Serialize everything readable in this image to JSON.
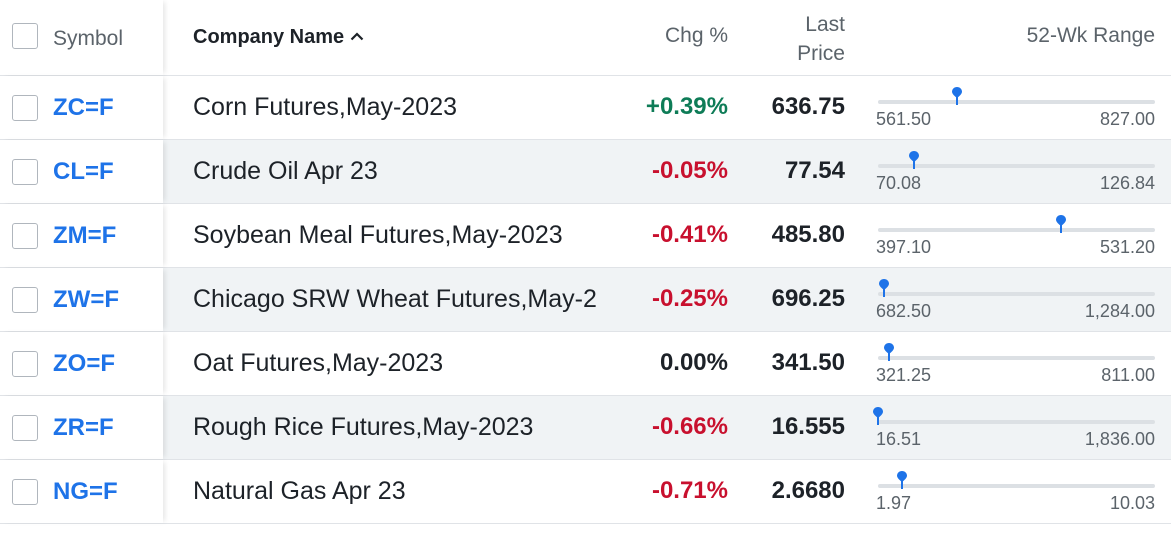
{
  "header": {
    "symbol": "Symbol",
    "company_name": "Company Name",
    "chg_pct": "Chg %",
    "last_price_line1": "Last",
    "last_price_line2": "Price",
    "range": "52-Wk Range"
  },
  "colors": {
    "positive": "#0e7c57",
    "negative": "#c8102e",
    "neutral": "#1d2228",
    "link": "#1e73e8",
    "marker": "#1e73e8"
  },
  "rows": [
    {
      "symbol": "ZC=F",
      "name": "Corn Futures,May-2023",
      "chg": "+0.39%",
      "direction": "positive",
      "price": "636.75",
      "low": "561.50",
      "high": "827.00",
      "position": 0.2835
    },
    {
      "symbol": "CL=F",
      "name": "Crude Oil Apr 23",
      "chg": "-0.05%",
      "direction": "negative",
      "price": "77.54",
      "low": "70.08",
      "high": "126.84",
      "position": 0.1314
    },
    {
      "symbol": "ZM=F",
      "name": "Soybean Meal Futures,May-2023",
      "chg": "-0.41%",
      "direction": "negative",
      "price": "485.80",
      "low": "397.10",
      "high": "531.20",
      "position": 0.6614
    },
    {
      "symbol": "ZW=F",
      "name": "Chicago SRW Wheat Futures,May-2",
      "chg": "-0.25%",
      "direction": "negative",
      "price": "696.25",
      "low": "682.50",
      "high": "1,284.00",
      "position": 0.0229
    },
    {
      "symbol": "ZO=F",
      "name": "Oat Futures,May-2023",
      "chg": "0.00%",
      "direction": "neutral",
      "price": "341.50",
      "low": "321.25",
      "high": "811.00",
      "position": 0.0413
    },
    {
      "symbol": "ZR=F",
      "name": "Rough Rice Futures,May-2023",
      "chg": "-0.66%",
      "direction": "negative",
      "price": "16.555",
      "low": "16.51",
      "high": "1,836.00",
      "position": 0.0
    },
    {
      "symbol": "NG=F",
      "name": "Natural Gas Apr 23",
      "chg": "-0.71%",
      "direction": "negative",
      "price": "2.6680",
      "low": "1.97",
      "high": "10.03",
      "position": 0.0866
    }
  ]
}
